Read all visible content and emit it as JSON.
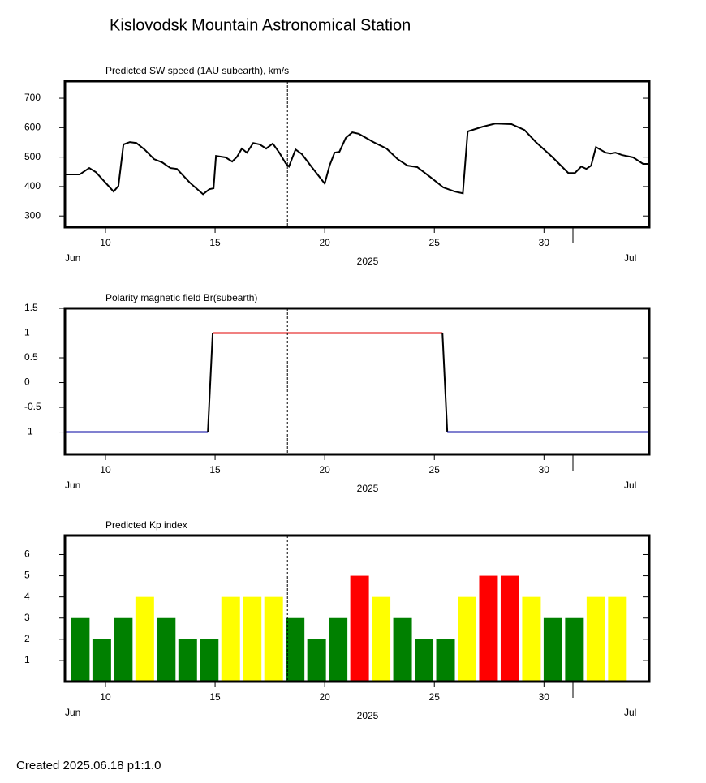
{
  "title": "Kislovodsk Mountain Astronomical Station",
  "footer": "Created  2025.06.18    p1:1.0",
  "chart_data": [
    {
      "type": "line",
      "title": "Predicted SW speed (1AU subearth), km/s",
      "xlim": [
        8.15,
        34.8
      ],
      "xticks": [
        10,
        15,
        20,
        25,
        30
      ],
      "month_labels": [
        "Jun",
        "Jul"
      ],
      "year_label": "2025",
      "ylim": [
        262,
        758
      ],
      "yticks": [
        300,
        400,
        500,
        600,
        700
      ],
      "marker_x": 18.3,
      "series": [
        {
          "color": "#000000",
          "x": [
            8.15,
            8.82,
            9.26,
            9.56,
            10.37,
            10.59,
            10.82,
            11.11,
            11.41,
            11.78,
            12.22,
            12.59,
            12.96,
            13.26,
            13.85,
            14.45,
            14.74,
            14.93,
            15.04,
            15.48,
            15.78,
            16.0,
            16.22,
            16.45,
            16.74,
            17.04,
            17.33,
            17.63,
            17.93,
            18.22,
            18.37,
            18.67,
            18.96,
            19.41,
            20.0,
            20.22,
            20.45,
            20.67,
            20.96,
            21.26,
            21.56,
            22.22,
            22.82,
            23.33,
            23.78,
            24.22,
            24.82,
            25.41,
            25.93,
            26.3,
            26.52,
            27.19,
            27.78,
            28.52,
            29.11,
            29.63,
            30.37,
            31.11,
            31.41,
            31.7,
            31.93,
            32.15,
            32.37,
            32.82,
            33.04,
            33.26,
            33.56,
            34.07,
            34.52,
            34.8
          ],
          "values": [
            441,
            441,
            463,
            449,
            383,
            402,
            543,
            551,
            548,
            526,
            493,
            482,
            463,
            460,
            413,
            374,
            391,
            394,
            504,
            499,
            485,
            501,
            529,
            515,
            548,
            543,
            529,
            546,
            515,
            479,
            468,
            526,
            510,
            466,
            410,
            471,
            515,
            518,
            565,
            584,
            579,
            551,
            529,
            493,
            471,
            466,
            432,
            397,
            383,
            377,
            587,
            603,
            614,
            612,
            592,
            551,
            501,
            446,
            446,
            468,
            460,
            471,
            534,
            515,
            512,
            515,
            507,
            499,
            477,
            477
          ]
        }
      ]
    },
    {
      "type": "line",
      "title": "Polarity magnetic field  Br(subearth)",
      "xlim": [
        8.15,
        34.8
      ],
      "xticks": [
        10,
        15,
        20,
        25,
        30
      ],
      "month_labels": [
        "Jun",
        "Jul"
      ],
      "year_label": "2025",
      "ylim": [
        -1.45,
        1.5
      ],
      "yticks": [
        1.5,
        1,
        0.5,
        0,
        -0.5,
        -1
      ],
      "marker_x": 18.3,
      "series": [
        {
          "color": "#0000a0",
          "x": [
            8.15,
            14.67
          ],
          "values": [
            -1,
            -1
          ]
        },
        {
          "color": "#000000",
          "x": [
            14.67,
            14.89
          ],
          "values": [
            -1,
            1
          ]
        },
        {
          "color": "#e00000",
          "x": [
            14.89,
            25.37
          ],
          "values": [
            1,
            1
          ]
        },
        {
          "color": "#000000",
          "x": [
            25.37,
            25.59
          ],
          "values": [
            1,
            -1
          ]
        },
        {
          "color": "#0000a0",
          "x": [
            25.59,
            34.8
          ],
          "values": [
            -1,
            -1
          ]
        }
      ]
    },
    {
      "type": "bar",
      "title": "Predicted Kp index",
      "xlim": [
        8.15,
        34.8
      ],
      "xticks": [
        10,
        15,
        20,
        25,
        30
      ],
      "month_labels": [
        "Jun",
        "Jul"
      ],
      "year_label": "2025",
      "ylim": [
        0,
        6.9
      ],
      "yticks": [
        1,
        2,
        3,
        4,
        5,
        6
      ],
      "marker_x": 18.3,
      "x": [
        8.85,
        9.83,
        10.81,
        11.79,
        12.77,
        13.75,
        14.73,
        15.71,
        16.69,
        17.67,
        18.65,
        19.63,
        20.61,
        21.59,
        22.57,
        23.55,
        24.53,
        25.51,
        26.49,
        27.47,
        28.45,
        29.43,
        30.41,
        31.39,
        32.37,
        33.35
      ],
      "values": [
        3,
        2,
        3,
        4,
        3,
        2,
        2,
        4,
        4,
        4,
        3,
        2,
        3,
        5,
        4,
        3,
        2,
        2,
        4,
        5,
        5,
        4,
        3,
        3,
        4,
        4
      ],
      "colors": [
        "#008000",
        "#008000",
        "#008000",
        "#ffff00",
        "#008000",
        "#008000",
        "#008000",
        "#ffff00",
        "#ffff00",
        "#ffff00",
        "#008000",
        "#008000",
        "#008000",
        "#ff0000",
        "#ffff00",
        "#008000",
        "#008000",
        "#008000",
        "#ffff00",
        "#ff0000",
        "#ff0000",
        "#ffff00",
        "#008000",
        "#008000",
        "#ffff00",
        "#ffff00"
      ]
    }
  ]
}
